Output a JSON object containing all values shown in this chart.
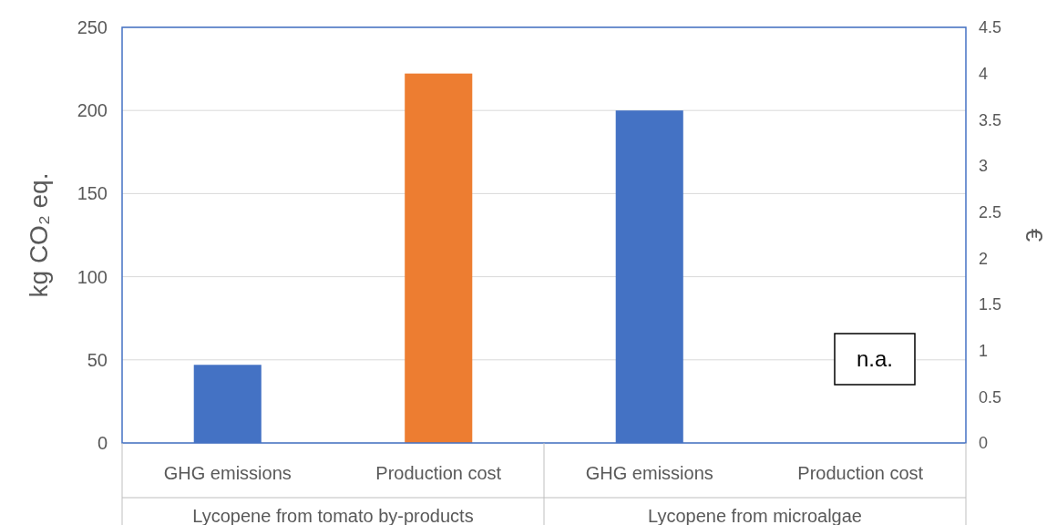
{
  "chart_data": {
    "type": "bar",
    "ylabel": "kg CO₂ eq.",
    "y2label": "€",
    "categories": [
      "GHG emissions",
      "Production cost",
      "GHG emissions",
      "Production cost"
    ],
    "series": [
      {
        "color": "#4472c4",
        "values": [
          47,
          null,
          200,
          null
        ]
      },
      {
        "color": "#ed7d31",
        "values": [
          null,
          4.0,
          null,
          null
        ],
        "axis": "y2"
      }
    ],
    "ylim": [
      0,
      250
    ],
    "yticks": [
      0,
      50,
      100,
      150,
      200,
      250
    ],
    "y2lim": [
      0,
      4.5
    ],
    "y2ticks": [
      0,
      0.5,
      1,
      1.5,
      2,
      2.5,
      3,
      3.5,
      4,
      4.5
    ],
    "grid": "y",
    "annotations": [
      "n.a.",
      "Lycopene from tomato by-products",
      "Lycopene from microalgae"
    ]
  }
}
